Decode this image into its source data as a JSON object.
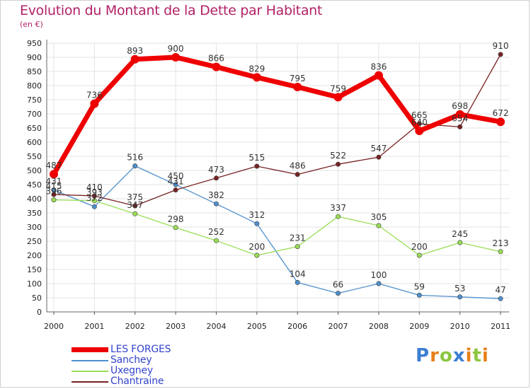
{
  "title": "Evolution du Montant de la Dette par Habitant",
  "unit": "(en €)",
  "brand": {
    "letters": [
      "P",
      "r",
      "o",
      "x",
      "i",
      "t",
      "i"
    ],
    "colors": [
      "#3b7fd4",
      "#e8801a",
      "#8cc63f",
      "#3b7fd4",
      "#e8801a",
      "#8cc63f",
      "#e8801a"
    ]
  },
  "chart_data": {
    "type": "line",
    "x": [
      "2000",
      "2001",
      "2002",
      "2003",
      "2004",
      "2005",
      "2006",
      "2007",
      "2008",
      "2009",
      "2010",
      "2011"
    ],
    "ylim": [
      0,
      950
    ],
    "yticks": [
      0,
      50,
      100,
      150,
      200,
      250,
      300,
      350,
      400,
      450,
      500,
      550,
      600,
      650,
      700,
      750,
      800,
      850,
      900,
      950
    ],
    "grid": true,
    "legend_position": "bottom-left",
    "series": [
      {
        "name": "LES FORGES",
        "color": "#ee0000",
        "values": [
          487,
          736,
          893,
          900,
          866,
          829,
          795,
          759,
          836,
          640,
          698,
          672
        ],
        "labels": [
          "487",
          "736",
          "893",
          "900",
          "866",
          "829",
          "795",
          "759",
          "836",
          "640",
          "698",
          "672"
        ]
      },
      {
        "name": "Sanchey",
        "color": "#4f8fcc",
        "values": [
          431,
          372,
          516,
          450,
          382,
          312,
          104,
          66,
          100,
          59,
          53,
          47
        ],
        "labels": [
          "431",
          "372",
          "516",
          "450",
          "382",
          "312",
          "104",
          "66",
          "100",
          "59",
          "53",
          "47"
        ]
      },
      {
        "name": "Uxegney",
        "color": "#99dd55",
        "values": [
          396,
          393,
          347,
          298,
          252,
          200,
          231,
          337,
          305,
          200,
          245,
          213
        ],
        "labels": [
          "396",
          "393",
          "347",
          "298",
          "252",
          "200",
          "231",
          "337",
          "305",
          "200",
          "245",
          "213"
        ]
      },
      {
        "name": "Chantraine",
        "color": "#772222",
        "values": [
          415,
          410,
          375,
          431,
          473,
          515,
          486,
          522,
          547,
          665,
          654,
          910
        ],
        "labels": [
          "415",
          "410",
          "375",
          "431",
          "473",
          "515",
          "486",
          "522",
          "547",
          "665",
          "654",
          "910"
        ]
      }
    ]
  }
}
